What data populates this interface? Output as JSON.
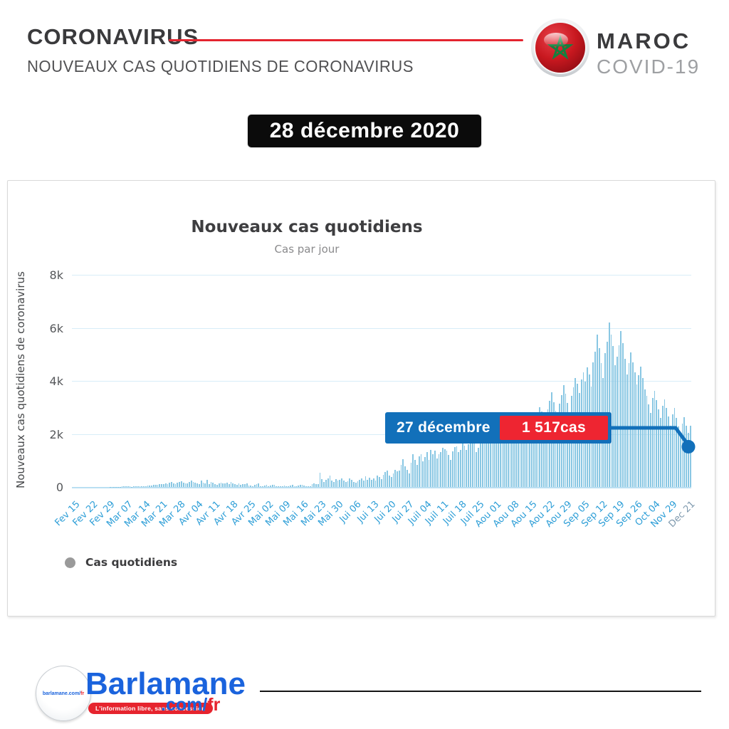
{
  "header": {
    "title": "CORONAVIRUS",
    "subtitle": "NOUVEAUX CAS QUOTIDIENS DE CORONAVIRUS",
    "country": "MAROC",
    "campaign": "COVID-19",
    "accent_red": "#e4242f"
  },
  "date_badge": {
    "text": "28 décembre 2020"
  },
  "chart_data": {
    "type": "bar",
    "title": "Nouveaux cas quotidiens",
    "subtitle": "Cas par jour",
    "ylabel": "Nouveaux cas quotidiens de coronavirus",
    "yticks": [
      "8k",
      "6k",
      "4k",
      "2k",
      "0"
    ],
    "ylim": [
      0,
      8000
    ],
    "grid": true,
    "bar_color": "#89c7e3",
    "x_tick_labels": [
      "Fev 15",
      "Fev 22",
      "Fev 29",
      "Mar 07",
      "Mar 14",
      "Mar 21",
      "Mar 28",
      "Avr 04",
      "Avr 11",
      "Avr 18",
      "Avr 25",
      "Mai 02",
      "Mai 09",
      "Mai 16",
      "Mai 23",
      "Mai 30",
      "Jui 06",
      "Jui 13",
      "Jui 20",
      "Jui 27",
      "Juil 04",
      "Juil 11",
      "Juil 18",
      "Juil 25",
      "Aou 01",
      "Aou 08",
      "Aou 15",
      "Aou 22",
      "Aou 29",
      "Sep 05",
      "Sep 12",
      "Sep 19",
      "Sep 26",
      "Oct 04",
      "Nov 29",
      "Dec 21"
    ],
    "values": [
      0,
      0,
      0,
      0,
      0,
      0,
      0,
      0,
      0,
      0,
      0,
      0,
      0,
      0,
      1,
      1,
      1,
      2,
      2,
      3,
      3,
      5,
      6,
      8,
      10,
      17,
      21,
      28,
      38,
      15,
      10,
      16,
      18,
      25,
      32,
      23,
      29,
      40,
      42,
      58,
      66,
      70,
      85,
      94,
      102,
      108,
      120,
      135,
      95,
      160,
      180,
      140,
      110,
      170,
      185,
      210,
      160,
      145,
      130,
      175,
      245,
      190,
      160,
      140,
      120,
      230,
      170,
      135,
      281,
      110,
      190,
      155,
      120,
      75,
      140,
      160,
      125,
      140,
      160,
      95,
      180,
      130,
      110,
      90,
      130,
      80,
      95,
      110,
      140,
      60,
      45,
      38,
      90,
      120,
      140,
      25,
      30,
      50,
      88,
      35,
      60,
      70,
      90,
      30,
      25,
      20,
      40,
      45,
      30,
      25,
      60,
      80,
      35,
      40,
      55,
      70,
      90,
      65,
      35,
      28,
      40,
      110,
      140,
      95,
      120,
      540,
      300,
      190,
      260,
      330,
      420,
      250,
      180,
      300,
      240,
      280,
      310,
      250,
      180,
      220,
      330,
      270,
      190,
      164,
      220,
      280,
      310,
      250,
      390,
      260,
      350,
      280,
      310,
      240,
      420,
      380,
      290,
      470,
      560,
      610,
      420,
      380,
      520,
      640,
      580,
      610,
      826,
      1046,
      780,
      640,
      520,
      900,
      1241,
      1018,
      820,
      1144,
      1230,
      960,
      1132,
      1328,
      1021,
      1402,
      1240,
      1360,
      1068,
      1240,
      1325,
      1490,
      1418,
      1380,
      1210,
      1020,
      1340,
      1499,
      1543,
      1310,
      1405,
      1636,
      1567,
      1400,
      1620,
      1880,
      2240,
      1768,
      1320,
      1480,
      2110,
      2370,
      2260,
      1950,
      1710,
      2080,
      2480,
      2620,
      2390,
      2150,
      1840,
      2170,
      2550,
      2710,
      2480,
      2280,
      1940,
      2120,
      2560,
      2830,
      2410,
      1890,
      2150,
      2250,
      1840,
      2520,
      2760,
      2430,
      2120,
      2680,
      3020,
      2840,
      2570,
      2190,
      2930,
      3260,
      3577,
      3190,
      2860,
      2440,
      3130,
      3470,
      3852,
      3520,
      3180,
      2750,
      3430,
      3760,
      4120,
      3890,
      3540,
      4045,
      4320,
      3980,
      4500,
      4250,
      3790,
      4700,
      5100,
      5745,
      5230,
      4680,
      4120,
      5050,
      5470,
      6195,
      5745,
      5320,
      4590,
      4900,
      5330,
      5870,
      5410,
      4820,
      4230,
      4660,
      5080,
      4702,
      4310,
      3870,
      4210,
      4550,
      4100,
      3680,
      3450,
      3120,
      2780,
      3350,
      3630,
      3280,
      2920,
      2600,
      3050,
      3310,
      2980,
      2650,
      2320,
      2740,
      2980,
      2610,
      2290,
      2010,
      2380,
      2620,
      2310,
      2050,
      2320
    ],
    "highlight": {
      "date_label": "27 décembre",
      "value_label": "1 517cas",
      "value": 1517,
      "tooltip_bg": "#1270ba",
      "value_bg": "#ee2531",
      "marker_color": "#1270ba"
    },
    "legend": [
      {
        "label": "Cas quotidiens",
        "color": "#9a9a9a"
      }
    ],
    "legend_position": "bottom-left"
  },
  "footer": {
    "logo_circle_text_main": "barlamane.com/",
    "logo_circle_text_fr": "fr",
    "brand": "Barlamane",
    "tagline": "L'information libre, sans concession",
    "domain_com": ".com/",
    "domain_fr": "fr"
  }
}
